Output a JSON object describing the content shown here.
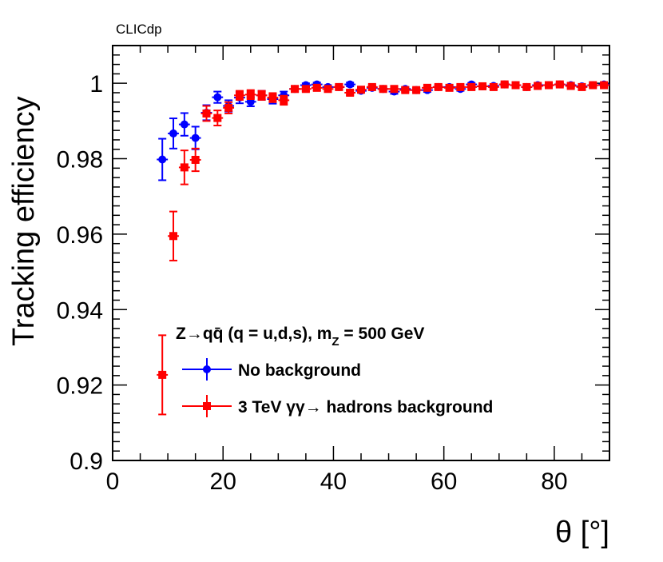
{
  "chart_data": {
    "type": "scatter",
    "watermark": "CLICdp",
    "xlabel": "θ [°]",
    "ylabel": "Tracking efficiency",
    "xlim": [
      0,
      90
    ],
    "ylim": [
      0.9,
      1.01
    ],
    "x_ticks": [
      0,
      20,
      40,
      60,
      80
    ],
    "x_tick_labels": [
      "0",
      "20",
      "40",
      "60",
      "80"
    ],
    "y_ticks": [
      0.9,
      0.92,
      0.94,
      0.96,
      0.98,
      1.0
    ],
    "y_tick_labels": [
      "0.9",
      "0.92",
      "0.94",
      "0.96",
      "0.98",
      "1"
    ],
    "grid": false,
    "legend": {
      "position": "bottom-left",
      "header_main": "Z→qq̄ (q = u,d,s), m",
      "header_sub": "Z",
      "header_tail": " = 500 GeV"
    },
    "series": [
      {
        "name": "No background",
        "color": "#0000ff",
        "marker": "circle",
        "points": [
          [
            9,
            0.9798,
            0.0055
          ],
          [
            11,
            0.9867,
            0.004
          ],
          [
            13,
            0.9891,
            0.003
          ],
          [
            15,
            0.9855,
            0.003
          ],
          [
            17,
            0.9922,
            0.002
          ],
          [
            19,
            0.9963,
            0.0015
          ],
          [
            21,
            0.994,
            0.0015
          ],
          [
            23,
            0.9962,
            0.0015
          ],
          [
            25,
            0.9951,
            0.0012
          ],
          [
            27,
            0.9968,
            0.0012
          ],
          [
            29,
            0.9958,
            0.0012
          ],
          [
            31,
            0.9968,
            0.001
          ],
          [
            33,
            0.9985,
            0.0008
          ],
          [
            35,
            0.9995,
            0.0005
          ],
          [
            37,
            0.9997,
            0.0005
          ],
          [
            39,
            0.999,
            0.0005
          ],
          [
            41,
            0.999,
            0.0005
          ],
          [
            43,
            0.9997,
            0.0005
          ],
          [
            45,
            0.998,
            0.0005
          ],
          [
            47,
            0.9988,
            0.0005
          ],
          [
            49,
            0.9985,
            0.0005
          ],
          [
            51,
            0.9978,
            0.0006
          ],
          [
            53,
            0.9985,
            0.0005
          ],
          [
            55,
            0.9982,
            0.0005
          ],
          [
            57,
            0.9982,
            0.0005
          ],
          [
            59,
            0.999,
            0.0005
          ],
          [
            61,
            0.999,
            0.0005
          ],
          [
            63,
            0.9985,
            0.0005
          ],
          [
            65,
            0.9997,
            0.0004
          ],
          [
            67,
            0.9992,
            0.0004
          ],
          [
            69,
            0.9993,
            0.0004
          ],
          [
            71,
            0.9997,
            0.0004
          ],
          [
            73,
            0.9995,
            0.0004
          ],
          [
            75,
            0.999,
            0.0004
          ],
          [
            77,
            0.9995,
            0.0004
          ],
          [
            79,
            0.9995,
            0.0004
          ],
          [
            81,
            0.9997,
            0.0004
          ],
          [
            83,
            0.9995,
            0.0004
          ],
          [
            85,
            0.9992,
            0.0004
          ],
          [
            87,
            0.9995,
            0.0004
          ],
          [
            89,
            0.9997,
            0.0004
          ]
        ]
      },
      {
        "name": "3 TeV  γγ→ hadrons background",
        "color": "#ff0000",
        "marker": "square",
        "points": [
          [
            9,
            0.9227,
            0.0105
          ],
          [
            11,
            0.9595,
            0.0065
          ],
          [
            13,
            0.9777,
            0.0045
          ],
          [
            15,
            0.9797,
            0.003
          ],
          [
            17,
            0.992,
            0.002
          ],
          [
            19,
            0.9908,
            0.002
          ],
          [
            21,
            0.9935,
            0.0015
          ],
          [
            23,
            0.9968,
            0.0012
          ],
          [
            25,
            0.997,
            0.0012
          ],
          [
            27,
            0.9968,
            0.0012
          ],
          [
            29,
            0.9962,
            0.0012
          ],
          [
            31,
            0.9955,
            0.0012
          ],
          [
            33,
            0.9985,
            0.0008
          ],
          [
            35,
            0.9985,
            0.0006
          ],
          [
            37,
            0.9988,
            0.0006
          ],
          [
            39,
            0.9985,
            0.0005
          ],
          [
            41,
            0.999,
            0.0005
          ],
          [
            43,
            0.9975,
            0.0006
          ],
          [
            45,
            0.9983,
            0.0005
          ],
          [
            47,
            0.999,
            0.0005
          ],
          [
            49,
            0.9985,
            0.0005
          ],
          [
            51,
            0.9985,
            0.0005
          ],
          [
            53,
            0.9982,
            0.0005
          ],
          [
            55,
            0.9982,
            0.0005
          ],
          [
            57,
            0.9988,
            0.0005
          ],
          [
            59,
            0.999,
            0.0005
          ],
          [
            61,
            0.9988,
            0.0005
          ],
          [
            63,
            0.999,
            0.0005
          ],
          [
            65,
            0.999,
            0.0004
          ],
          [
            67,
            0.9992,
            0.0004
          ],
          [
            69,
            0.999,
            0.0004
          ],
          [
            71,
            0.9997,
            0.0004
          ],
          [
            73,
            0.9995,
            0.0004
          ],
          [
            75,
            0.999,
            0.0004
          ],
          [
            77,
            0.9993,
            0.0004
          ],
          [
            79,
            0.9995,
            0.0004
          ],
          [
            81,
            0.9997,
            0.0004
          ],
          [
            83,
            0.9993,
            0.0004
          ],
          [
            85,
            0.999,
            0.0004
          ],
          [
            87,
            0.9995,
            0.0004
          ],
          [
            89,
            0.9995,
            0.0004
          ]
        ]
      }
    ]
  }
}
